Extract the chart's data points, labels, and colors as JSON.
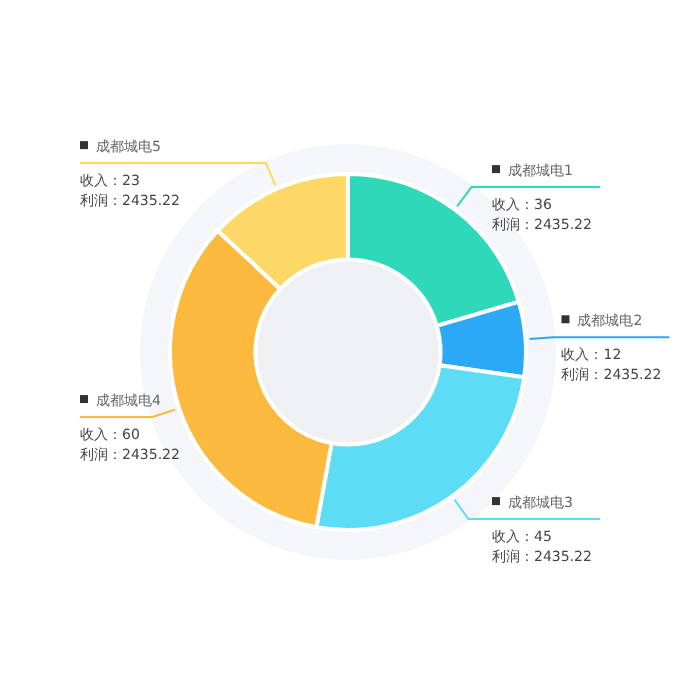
{
  "chart_data": {
    "type": "donut",
    "categories": [
      "成都城电1",
      "成都城电2",
      "成都城电3",
      "成都城电4",
      "成都城电5"
    ],
    "values": [
      36,
      12,
      45,
      60,
      23
    ],
    "colors": [
      "#2dd9b8",
      "#2ba9f7",
      "#5ddcf5",
      "#fbb93e",
      "#fdd866"
    ],
    "value_labels": [
      "收入：36\n利润：2435.22",
      "收入：12\n利润：2435.22",
      "收入：45\n利润：2435.22",
      "收入：60\n利润：2435.22",
      "收入：23\n利润：2435.22"
    ],
    "legend": false
  }
}
